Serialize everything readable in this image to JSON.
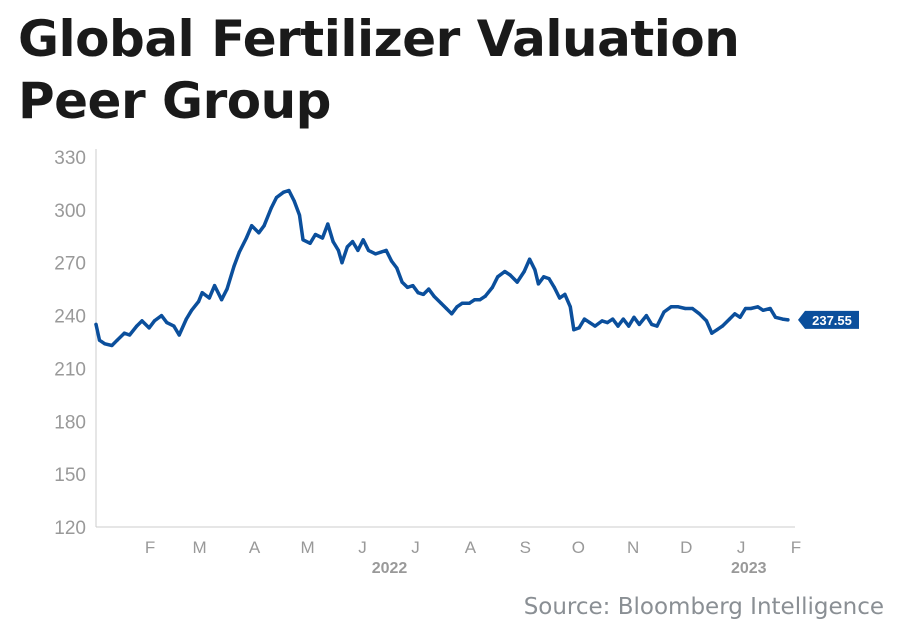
{
  "title": "Global Fertilizer Valuation Peer Group",
  "source": "Source: Bloomberg Intelligence",
  "colors": {
    "line": "#0b4f9c",
    "label_bg": "#0b4f9c",
    "label_text": "#ffffff",
    "axis_text": "#999999",
    "axis_line": "#cccccc"
  },
  "chart_data": {
    "type": "line",
    "title": "Global Fertilizer Valuation Peer Group",
    "xlabel": "",
    "ylabel": "",
    "ylim": [
      120,
      330
    ],
    "yticks": [
      120,
      150,
      180,
      210,
      240,
      270,
      300,
      330
    ],
    "grid": false,
    "last_value_label": "237.55",
    "month_ticks": [
      {
        "label": "F",
        "date": "2022-02-01"
      },
      {
        "label": "M",
        "date": "2022-03-01"
      },
      {
        "label": "A",
        "date": "2022-04-01"
      },
      {
        "label": "M",
        "date": "2022-05-01"
      },
      {
        "label": "J",
        "date": "2022-06-01"
      },
      {
        "label": "J",
        "date": "2022-07-01"
      },
      {
        "label": "A",
        "date": "2022-08-01"
      },
      {
        "label": "S",
        "date": "2022-09-01"
      },
      {
        "label": "O",
        "date": "2022-10-01"
      },
      {
        "label": "N",
        "date": "2022-11-01"
      },
      {
        "label": "D",
        "date": "2022-12-01"
      },
      {
        "label": "J",
        "date": "2023-01-01"
      },
      {
        "label": "F",
        "date": "2023-02-01"
      }
    ],
    "year_labels": [
      {
        "label": "2022",
        "date": "2022-07-01"
      },
      {
        "label": "2023",
        "date": "2023-01-20"
      }
    ],
    "series": [
      {
        "values": [
          [
            "2022-01-15",
            235
          ],
          [
            "2022-01-17",
            226
          ],
          [
            "2022-01-20",
            224
          ],
          [
            "2022-01-24",
            223
          ],
          [
            "2022-01-27",
            226
          ],
          [
            "2022-01-31",
            230
          ],
          [
            "2022-02-03",
            229
          ],
          [
            "2022-02-07",
            234
          ],
          [
            "2022-02-10",
            237
          ],
          [
            "2022-02-14",
            233
          ],
          [
            "2022-02-17",
            237
          ],
          [
            "2022-02-21",
            240
          ],
          [
            "2022-02-24",
            236
          ],
          [
            "2022-02-28",
            234
          ],
          [
            "2022-03-03",
            229
          ],
          [
            "2022-03-07",
            238
          ],
          [
            "2022-03-10",
            243
          ],
          [
            "2022-03-14",
            248
          ],
          [
            "2022-03-16",
            253
          ],
          [
            "2022-03-20",
            250
          ],
          [
            "2022-03-23",
            257
          ],
          [
            "2022-03-27",
            249
          ],
          [
            "2022-03-30",
            255
          ],
          [
            "2022-04-03",
            268
          ],
          [
            "2022-04-06",
            276
          ],
          [
            "2022-04-10",
            284
          ],
          [
            "2022-04-13",
            291
          ],
          [
            "2022-04-17",
            287
          ],
          [
            "2022-04-20",
            291
          ],
          [
            "2022-04-24",
            301
          ],
          [
            "2022-04-27",
            307
          ],
          [
            "2022-05-01",
            310
          ],
          [
            "2022-05-04",
            311
          ],
          [
            "2022-05-07",
            305
          ],
          [
            "2022-05-10",
            297
          ],
          [
            "2022-05-12",
            283
          ],
          [
            "2022-05-16",
            281
          ],
          [
            "2022-05-19",
            286
          ],
          [
            "2022-05-23",
            284
          ],
          [
            "2022-05-26",
            292
          ],
          [
            "2022-05-29",
            282
          ],
          [
            "2022-06-01",
            277
          ],
          [
            "2022-06-03",
            270
          ],
          [
            "2022-06-06",
            279
          ],
          [
            "2022-06-09",
            282
          ],
          [
            "2022-06-12",
            277
          ],
          [
            "2022-06-15",
            283
          ],
          [
            "2022-06-18",
            277
          ],
          [
            "2022-06-22",
            275
          ],
          [
            "2022-06-25",
            276
          ],
          [
            "2022-06-28",
            277
          ],
          [
            "2022-07-01",
            271
          ],
          [
            "2022-07-04",
            267
          ],
          [
            "2022-07-07",
            259
          ],
          [
            "2022-07-10",
            256
          ],
          [
            "2022-07-13",
            257
          ],
          [
            "2022-07-16",
            253
          ],
          [
            "2022-07-19",
            252
          ],
          [
            "2022-07-22",
            255
          ],
          [
            "2022-07-25",
            251
          ],
          [
            "2022-07-29",
            247
          ],
          [
            "2022-08-01",
            244
          ],
          [
            "2022-08-04",
            241
          ],
          [
            "2022-08-07",
            245
          ],
          [
            "2022-08-10",
            247
          ],
          [
            "2022-08-14",
            247
          ],
          [
            "2022-08-17",
            249
          ],
          [
            "2022-08-20",
            249
          ],
          [
            "2022-08-23",
            251
          ],
          [
            "2022-08-27",
            256
          ],
          [
            "2022-08-30",
            262
          ],
          [
            "2022-09-03",
            265
          ],
          [
            "2022-09-06",
            263
          ],
          [
            "2022-09-10",
            259
          ],
          [
            "2022-09-14",
            265
          ],
          [
            "2022-09-17",
            272
          ],
          [
            "2022-09-20",
            266
          ],
          [
            "2022-09-22",
            258
          ],
          [
            "2022-09-25",
            262
          ],
          [
            "2022-09-28",
            261
          ],
          [
            "2022-10-01",
            256
          ],
          [
            "2022-10-04",
            250
          ],
          [
            "2022-10-07",
            252
          ],
          [
            "2022-10-10",
            245
          ],
          [
            "2022-10-12",
            232
          ],
          [
            "2022-10-15",
            233
          ],
          [
            "2022-10-18",
            238
          ],
          [
            "2022-10-21",
            236
          ],
          [
            "2022-10-24",
            234
          ],
          [
            "2022-10-28",
            237
          ],
          [
            "2022-10-31",
            236
          ],
          [
            "2022-11-03",
            238
          ],
          [
            "2022-11-06",
            234
          ],
          [
            "2022-11-09",
            238
          ],
          [
            "2022-11-12",
            234
          ],
          [
            "2022-11-15",
            239
          ],
          [
            "2022-11-18",
            235
          ],
          [
            "2022-11-22",
            240
          ],
          [
            "2022-11-25",
            235
          ],
          [
            "2022-11-28",
            234
          ],
          [
            "2022-12-02",
            242
          ],
          [
            "2022-12-06",
            245
          ],
          [
            "2022-12-10",
            245
          ],
          [
            "2022-12-14",
            244
          ],
          [
            "2022-12-18",
            244
          ],
          [
            "2022-12-22",
            241
          ],
          [
            "2022-12-26",
            237
          ],
          [
            "2022-12-29",
            230
          ],
          [
            "2023-01-01",
            232
          ],
          [
            "2023-01-04",
            234
          ],
          [
            "2023-01-08",
            238
          ],
          [
            "2023-01-11",
            241
          ],
          [
            "2023-01-14",
            239
          ],
          [
            "2023-01-17",
            244
          ],
          [
            "2023-01-20",
            244
          ],
          [
            "2023-01-24",
            245
          ],
          [
            "2023-01-27",
            243
          ],
          [
            "2023-01-31",
            244
          ],
          [
            "2023-02-03",
            239
          ],
          [
            "2023-02-07",
            238
          ],
          [
            "2023-02-10",
            237.55
          ]
        ]
      }
    ]
  }
}
